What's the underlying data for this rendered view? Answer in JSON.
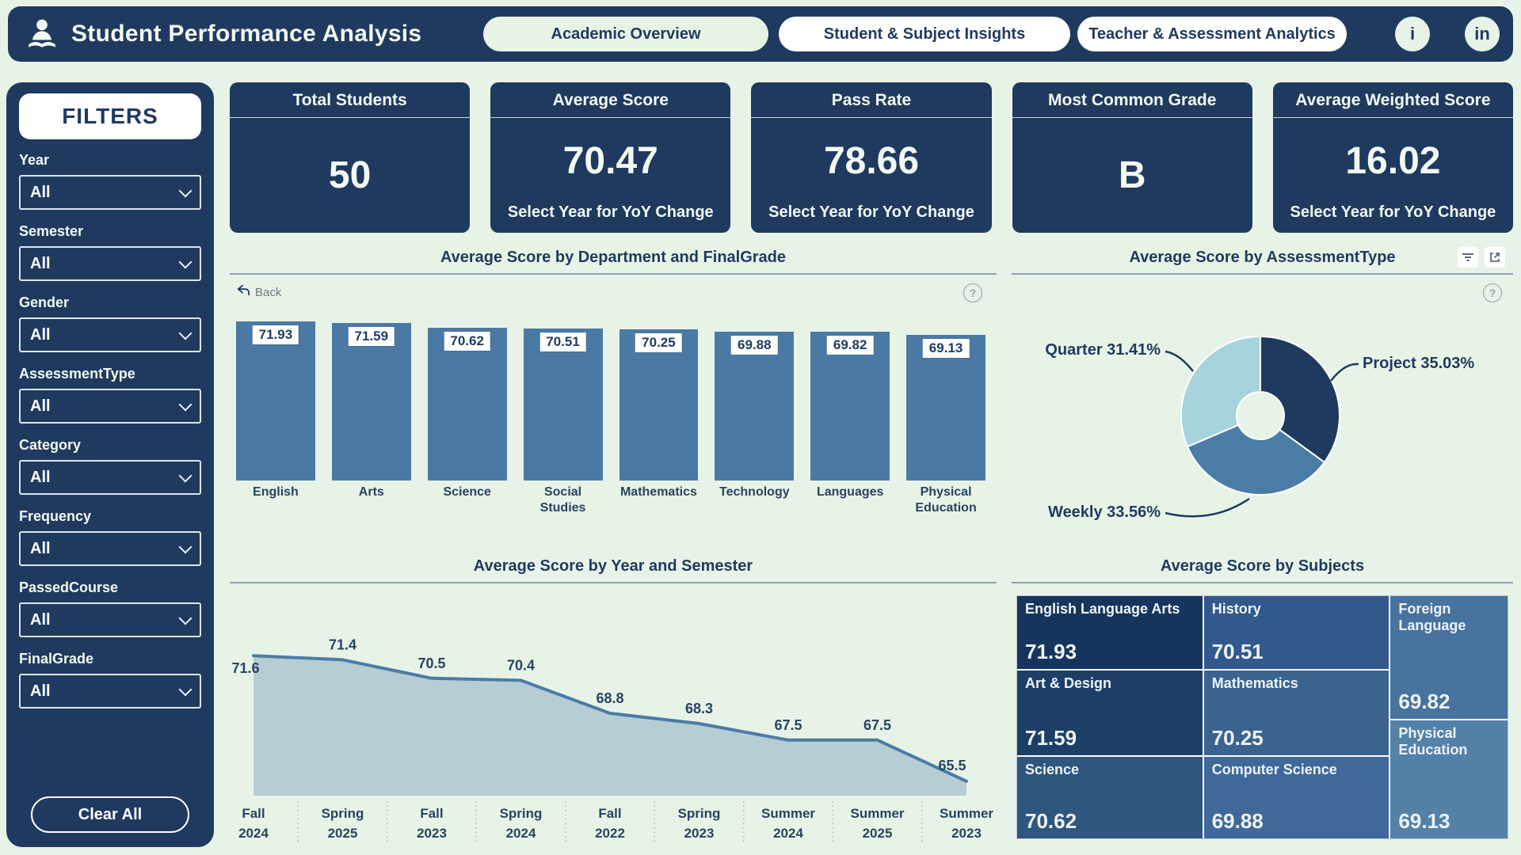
{
  "colors": {
    "page_bg": "#e8f3e8",
    "navy": "#1f3a5e",
    "bar_blue": "#4a7aa4",
    "area_fill": "#b5cdd3",
    "area_line": "#4a7ca6",
    "donut_dark": "#1f3a5e",
    "donut_mid": "#4a7ca6",
    "donut_light": "#a7d3dc",
    "divider": "#8fa3b0"
  },
  "header": {
    "title": "Student Performance Analysis",
    "nav": [
      {
        "label": "Academic Overview",
        "active": true
      },
      {
        "label": "Student & Subject Insights",
        "active": false
      },
      {
        "label": "Teacher & Assessment Analytics",
        "active": false
      }
    ],
    "info_icon": "i",
    "linkedin_icon": "in"
  },
  "sidebar": {
    "title": "FILTERS",
    "filters": [
      {
        "label": "Year",
        "value": "All"
      },
      {
        "label": "Semester",
        "value": "All"
      },
      {
        "label": "Gender",
        "value": "All"
      },
      {
        "label": "AssessmentType",
        "value": "All"
      },
      {
        "label": "Category",
        "value": "All"
      },
      {
        "label": "Frequency",
        "value": "All"
      },
      {
        "label": "PassedCourse",
        "value": "All"
      },
      {
        "label": "FinalGrade",
        "value": "All"
      }
    ],
    "clear_button": "Clear All"
  },
  "kpis": [
    {
      "title": "Total Students",
      "value": "50",
      "footnote": ""
    },
    {
      "title": "Average Score",
      "value": "70.47",
      "footnote": "Select Year for YoY Change"
    },
    {
      "title": "Pass Rate",
      "value": "78.66",
      "footnote": "Select Year for YoY Change"
    },
    {
      "title": "Most Common Grade",
      "value": "B",
      "footnote": ""
    },
    {
      "title": "Average Weighted Score",
      "value": "16.02",
      "footnote": "Select Year for YoY Change"
    }
  ],
  "bar_panel": {
    "back_label": "Back",
    "help_icon": "?"
  },
  "donut_panel": {
    "help_icon": "?"
  },
  "chart_data": [
    {
      "type": "bar",
      "title": "Average Score by Department and FinalGrade",
      "categories": [
        "English",
        "Arts",
        "Science",
        "Social Studies",
        "Mathematics",
        "Technology",
        "Languages",
        "Physical Education"
      ],
      "values": [
        71.93,
        71.59,
        70.62,
        70.51,
        70.25,
        69.88,
        69.82,
        69.13
      ],
      "bar_color": "#4a7aa4",
      "data_labels": true,
      "grid": false
    },
    {
      "type": "pie",
      "title": "Average Score by AssessmentType",
      "donut": true,
      "slices": [
        {
          "label": "Project",
          "value": 35.03,
          "color": "#1f3a5e"
        },
        {
          "label": "Weekly",
          "value": 33.56,
          "color": "#4a7ca6"
        },
        {
          "label": "Quarter",
          "value": 31.41,
          "color": "#a7d3dc"
        }
      ],
      "unit": "%",
      "label_format": "label value%"
    },
    {
      "type": "area",
      "title": "Average Score by Year and Semester",
      "categories": [
        [
          "Fall",
          "2024"
        ],
        [
          "Spring",
          "2025"
        ],
        [
          "Fall",
          "2023"
        ],
        [
          "Spring",
          "2024"
        ],
        [
          "Fall",
          "2022"
        ],
        [
          "Spring",
          "2023"
        ],
        [
          "Summer",
          "2024"
        ],
        [
          "Summer",
          "2025"
        ],
        [
          "Summer",
          "2023"
        ]
      ],
      "values": [
        71.6,
        71.4,
        70.5,
        70.4,
        68.8,
        68.3,
        67.5,
        67.5,
        65.5
      ],
      "line_color": "#4a7ca6",
      "fill_color": "#b5cdd3",
      "ylim": [
        64.8,
        74.0
      ],
      "data_labels": true,
      "grid": false
    },
    {
      "type": "treemap",
      "title": "Average Score by Subjects",
      "items": [
        {
          "name": "English Language Arts",
          "value": "71.93",
          "color": "#16355c"
        },
        {
          "name": "Art & Design",
          "value": "71.59",
          "color": "#1d3f66"
        },
        {
          "name": "Science",
          "value": "70.62",
          "color": "#2e567f"
        },
        {
          "name": "History",
          "value": "70.51",
          "color": "#31598b"
        },
        {
          "name": "Mathematics",
          "value": "70.25",
          "color": "#3a648f"
        },
        {
          "name": "Computer Science",
          "value": "69.88",
          "color": "#40699a"
        },
        {
          "name": "Foreign Language",
          "value": "69.82",
          "color": "#47739e"
        },
        {
          "name": "Physical Education",
          "value": "69.13",
          "color": "#5381a8"
        }
      ]
    }
  ]
}
